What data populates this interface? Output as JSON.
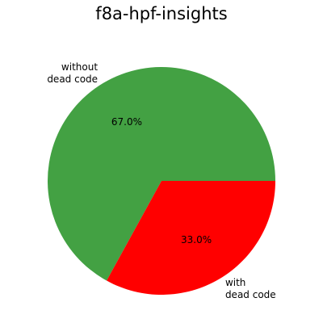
{
  "chart_data": {
    "type": "pie",
    "title": "f8a-hpf-insights",
    "slices": [
      {
        "label_lines": [
          "without",
          "dead code"
        ],
        "percent_label": "67.0%",
        "value": 67.0,
        "color": "#43a143"
      },
      {
        "label_lines": [
          "with",
          "dead code"
        ],
        "percent_label": "33.0%",
        "value": 33.0,
        "color": "#ff0000"
      }
    ]
  }
}
